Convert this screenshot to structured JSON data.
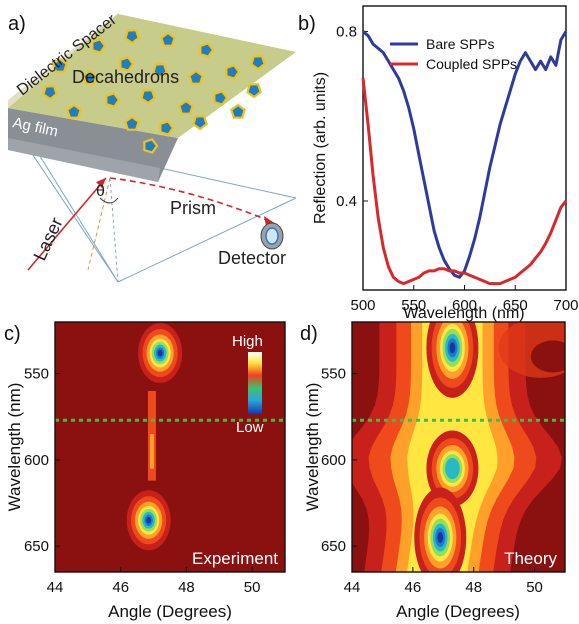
{
  "panel_a": {
    "letter": "a)",
    "labels": {
      "spacer": "Dielectric Spacer",
      "particles": "Decahedrons",
      "film": "Ag film",
      "laser": "Laser",
      "angle": "θ",
      "prism": "Prism",
      "detector": "Detector"
    },
    "colors": {
      "spacer": "#c8cc8a",
      "film": "#8a8f96",
      "particle_fill": "#1f7ec2",
      "particle_edge": "#f2c21b",
      "laser": "#d0282a"
    }
  },
  "chart_data": [
    {
      "panel": "b)",
      "type": "line",
      "xlabel": "Wavelength (nm)",
      "ylabel": "Reflection (arb. units)",
      "xlim": [
        500,
        700
      ],
      "ylim": [
        0.19,
        0.86
      ],
      "xticks": [
        "500",
        "550",
        "600",
        "650",
        "700"
      ],
      "yticks": [
        "0.4",
        "0.8"
      ],
      "legend_position": "top-center",
      "series": [
        {
          "name": "Bare SPPs",
          "color": "#2e3a9c",
          "x": [
            500,
            505,
            510,
            515,
            520,
            525,
            530,
            535,
            540,
            545,
            550,
            555,
            560,
            565,
            570,
            575,
            580,
            585,
            590,
            595,
            600,
            605,
            610,
            615,
            620,
            625,
            630,
            635,
            640,
            645,
            650,
            655,
            660,
            665,
            670,
            675,
            680,
            685,
            690,
            695,
            700
          ],
          "y": [
            0.8,
            0.79,
            0.77,
            0.76,
            0.75,
            0.73,
            0.71,
            0.69,
            0.66,
            0.62,
            0.57,
            0.51,
            0.45,
            0.39,
            0.33,
            0.29,
            0.26,
            0.24,
            0.225,
            0.22,
            0.235,
            0.27,
            0.31,
            0.36,
            0.42,
            0.48,
            0.53,
            0.58,
            0.62,
            0.66,
            0.7,
            0.73,
            0.75,
            0.73,
            0.71,
            0.73,
            0.71,
            0.74,
            0.72,
            0.78,
            0.8
          ]
        },
        {
          "name": "Coupled SPPs",
          "color": "#d8282a",
          "x": [
            500,
            505,
            510,
            515,
            520,
            525,
            530,
            535,
            540,
            545,
            550,
            555,
            560,
            565,
            570,
            575,
            580,
            585,
            590,
            595,
            600,
            605,
            610,
            615,
            620,
            625,
            630,
            635,
            640,
            645,
            650,
            655,
            660,
            665,
            670,
            675,
            680,
            685,
            690,
            695,
            700
          ],
          "y": [
            0.69,
            0.58,
            0.46,
            0.36,
            0.29,
            0.245,
            0.22,
            0.21,
            0.205,
            0.21,
            0.215,
            0.22,
            0.23,
            0.235,
            0.235,
            0.24,
            0.24,
            0.235,
            0.235,
            0.23,
            0.23,
            0.225,
            0.22,
            0.215,
            0.21,
            0.205,
            0.205,
            0.205,
            0.21,
            0.215,
            0.22,
            0.23,
            0.24,
            0.25,
            0.265,
            0.28,
            0.3,
            0.325,
            0.355,
            0.385,
            0.4
          ]
        }
      ]
    },
    {
      "panel": "c)",
      "type": "heatmap",
      "title": "Experiment",
      "xlabel": "Angle (Degrees)",
      "ylabel": "Wavelength (nm)",
      "xlim": [
        44,
        51
      ],
      "ylim": [
        520,
        665
      ],
      "xticks": [
        "44",
        "46",
        "48",
        "50"
      ],
      "yticks": [
        "550",
        "600",
        "650"
      ],
      "colorbar": {
        "high": "High",
        "low": "Low"
      },
      "guide_wavelength": 577,
      "dips": [
        {
          "angle_center": 47.2,
          "wavelength_center": 538,
          "depth": 1.0
        },
        {
          "angle_center": 46.85,
          "wavelength_center": 635,
          "depth": 0.95
        }
      ]
    },
    {
      "panel": "d)",
      "type": "heatmap",
      "title": "Theory",
      "xlabel": "Angle (Degrees)",
      "ylabel": "Wavelength (nm)",
      "xlim": [
        44,
        51
      ],
      "ylim": [
        520,
        665
      ],
      "xticks": [
        "44",
        "46",
        "48",
        "50"
      ],
      "yticks": [
        "550",
        "600",
        "650"
      ],
      "guide_wavelength": 577,
      "dips": [
        {
          "angle_center": 47.3,
          "wavelength_center": 535,
          "depth": 1.0
        },
        {
          "angle_center": 47.3,
          "wavelength_center": 605,
          "depth": 0.8
        },
        {
          "angle_center": 46.9,
          "wavelength_center": 645,
          "depth": 1.0
        }
      ]
    }
  ]
}
